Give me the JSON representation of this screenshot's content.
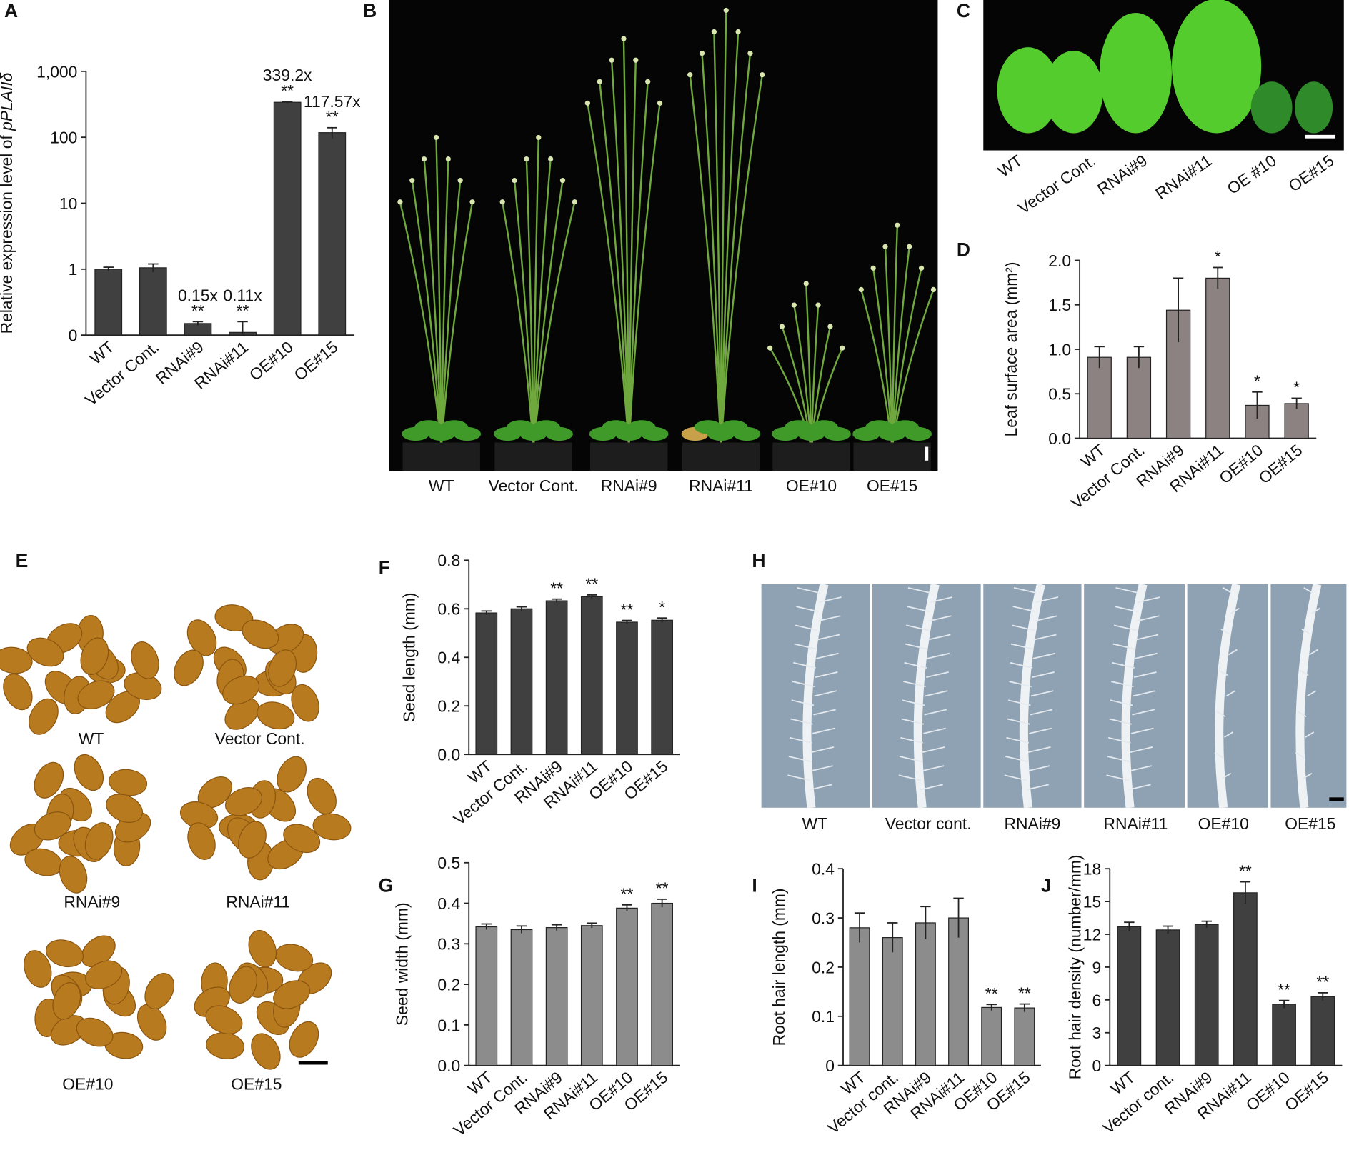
{
  "chart_data": [
    {
      "type": "bar",
      "panel": "A",
      "ylabel_parts": [
        "Relative expression level of ",
        "pPLAIIδ"
      ],
      "categories": [
        "WT",
        "Vector Cont.",
        "RNAi#9",
        "RNAi#11",
        "OE#10",
        "OE#15"
      ],
      "values": [
        1,
        1.05,
        0.15,
        0.11,
        339.2,
        117.57
      ],
      "errors": [
        0.07,
        0.15,
        0.01,
        0.05,
        10,
        22
      ],
      "value_labels": [
        null,
        null,
        "0.15x",
        "0.11x",
        "339.2x",
        "117.57x"
      ],
      "stars": [
        null,
        null,
        "**",
        "**",
        "**",
        "**"
      ],
      "color": "#404040",
      "log_scale": true,
      "ylim": [
        0.1,
        1000
      ],
      "yticks": [
        {
          "value": 0.1,
          "label": "0"
        },
        1,
        10,
        100,
        {
          "value": 1000,
          "label": "1,000"
        }
      ]
    },
    {
      "type": "bar",
      "panel": "D",
      "ylabel": "Leaf surface area (mm²)",
      "categories": [
        "WT",
        "Vector Cont.",
        "RNAi#9",
        "RNAi#11",
        "OE#10",
        "OE#15"
      ],
      "values": [
        0.91,
        0.91,
        1.44,
        1.8,
        0.37,
        0.39
      ],
      "errors": [
        0.12,
        0.12,
        0.36,
        0.12,
        0.15,
        0.06
      ],
      "stars": [
        null,
        null,
        null,
        "*",
        "*",
        "*"
      ],
      "color": "#8c8282",
      "ylim": [
        0,
        2
      ],
      "yticks": [
        {
          "value": 0,
          "label": "0.0"
        },
        0.5,
        {
          "value": 1,
          "label": "1.0"
        },
        1.5,
        {
          "value": 2,
          "label": "2.0"
        }
      ]
    },
    {
      "type": "bar",
      "panel": "F",
      "ylabel": "Seed length (mm)",
      "categories": [
        "WT",
        "Vector Cont.",
        "RNAi#9",
        "RNAi#11",
        "OE#10",
        "OE#15"
      ],
      "values": [
        0.583,
        0.6,
        0.633,
        0.65,
        0.545,
        0.553
      ],
      "errors": [
        0.008,
        0.008,
        0.007,
        0.007,
        0.007,
        0.009
      ],
      "stars": [
        null,
        null,
        "**",
        "**",
        "**",
        "*"
      ],
      "color": "#404040",
      "ylim": [
        0,
        0.8
      ],
      "yticks": [
        {
          "value": 0,
          "label": "0.0"
        },
        0.2,
        0.4,
        0.6,
        0.8
      ]
    },
    {
      "type": "bar",
      "panel": "G",
      "ylabel": "Seed width (mm)",
      "categories": [
        "WT",
        "Vector Cont.",
        "RNAi#9",
        "RNAi#11",
        "OE#10",
        "OE#15"
      ],
      "values": [
        0.342,
        0.335,
        0.34,
        0.345,
        0.388,
        0.4
      ],
      "errors": [
        0.007,
        0.009,
        0.007,
        0.006,
        0.008,
        0.01
      ],
      "stars": [
        null,
        null,
        null,
        null,
        "**",
        "**"
      ],
      "color": "#8c8c8c",
      "ylim": [
        0,
        0.5
      ],
      "yticks": [
        {
          "value": 0,
          "label": "0.0"
        },
        0.1,
        0.2,
        0.3,
        0.4,
        0.5
      ]
    },
    {
      "type": "bar",
      "panel": "I",
      "ylabel": "Root hair length (mm)",
      "categories": [
        "WT",
        "Vector cont.",
        "RNAi#9",
        "RNAi#11",
        "OE#10",
        "OE#15"
      ],
      "values": [
        0.28,
        0.26,
        0.29,
        0.3,
        0.118,
        0.117
      ],
      "errors": [
        0.03,
        0.03,
        0.033,
        0.04,
        0.006,
        0.008
      ],
      "stars": [
        null,
        null,
        null,
        null,
        "**",
        "**"
      ],
      "color": "#8c8c8c",
      "ylim": [
        0,
        0.4
      ],
      "yticks": [
        0,
        0.1,
        0.2,
        0.3,
        0.4
      ]
    },
    {
      "type": "bar",
      "panel": "J",
      "ylabel": "Root hair density (number/mm)",
      "categories": [
        "WT",
        "Vector cont.",
        "RNAi#9",
        "RNAi#11",
        "OE#10",
        "OE#15"
      ],
      "values": [
        12.7,
        12.4,
        12.9,
        15.8,
        5.6,
        6.3
      ],
      "errors": [
        0.4,
        0.35,
        0.3,
        1.0,
        0.35,
        0.35
      ],
      "stars": [
        null,
        null,
        null,
        "**",
        "**",
        "**"
      ],
      "color": "#404040",
      "ylim": [
        0,
        18
      ],
      "yticks": [
        0,
        3,
        6,
        9,
        12,
        15,
        18
      ]
    }
  ],
  "photo_panels": [
    {
      "panel": "B",
      "labels": [
        "WT",
        "Vector Cont.",
        "RNAi#9",
        "RNAi#11",
        "OE#10",
        "OE#15"
      ]
    },
    {
      "panel": "C",
      "labels": [
        "WT",
        "Vector Cont.",
        "RNAi#9",
        "RNAi#11",
        "OE #10",
        "OE#15"
      ]
    },
    {
      "panel": "E",
      "labels": [
        "WT",
        "Vector Cont.",
        "RNAi#9",
        "RNAi#11",
        "OE#10",
        "OE#15"
      ]
    },
    {
      "panel": "H",
      "labels": [
        "WT",
        "Vector cont.",
        "RNAi#9",
        "RNAi#11",
        "OE#10",
        "OE#15"
      ]
    }
  ]
}
